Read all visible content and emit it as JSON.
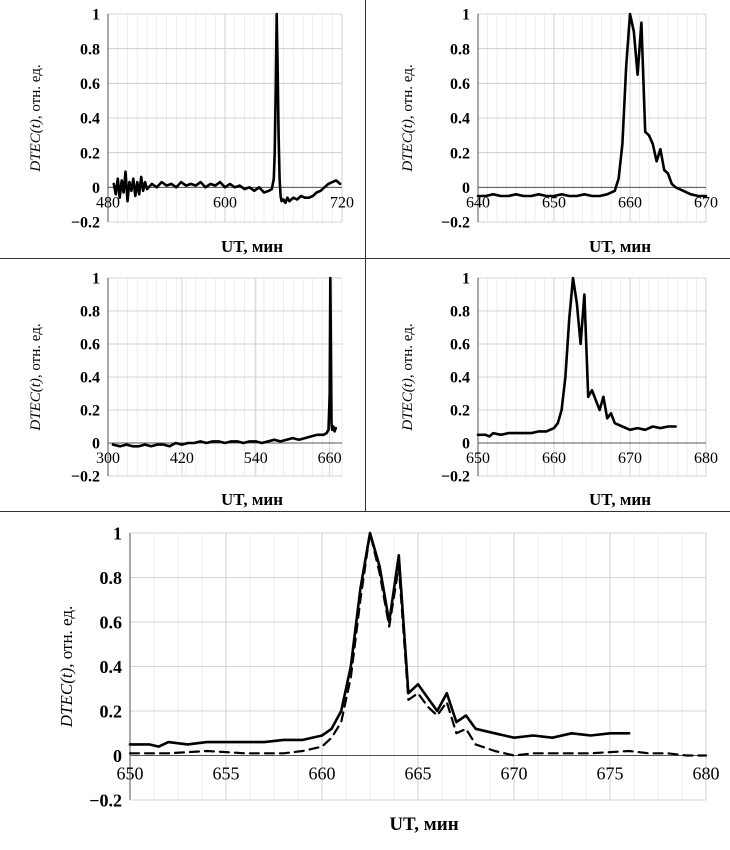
{
  "chart_data": [
    {
      "type": "line",
      "panel": "top-left",
      "xlabel": "UT, мин",
      "ylabel_italic": "DTEC(t)",
      "ylabel_rest": ", отн. ед.",
      "xlim": [
        480,
        720
      ],
      "ylim": [
        -0.2,
        1
      ],
      "xticks": [
        480,
        600,
        720
      ],
      "xtick_labels": [
        "480",
        "600",
        "720"
      ],
      "yticks": [
        -0.2,
        0,
        0.2,
        0.4,
        0.6,
        0.8,
        1
      ],
      "ytick_labels": [
        "−0.2",
        "0",
        "0.2",
        "0.4",
        "0.6",
        "0.8",
        "1"
      ],
      "series": [
        {
          "name": "DTEC",
          "style": "solid",
          "x": [
            486,
            488,
            490,
            492,
            494,
            496,
            498,
            500,
            502,
            504,
            506,
            508,
            510,
            512,
            514,
            516,
            518,
            520,
            525,
            530,
            535,
            540,
            545,
            550,
            555,
            560,
            565,
            570,
            575,
            580,
            585,
            590,
            595,
            600,
            605,
            610,
            615,
            620,
            625,
            630,
            635,
            640,
            645,
            648,
            650,
            651,
            652,
            653,
            654,
            655,
            656,
            657,
            658,
            660,
            662,
            664,
            666,
            668,
            670,
            674,
            678,
            682,
            686,
            690,
            694,
            698,
            702,
            706,
            710,
            714,
            718
          ],
          "y": [
            0.02,
            -0.04,
            0.05,
            -0.06,
            0.04,
            -0.03,
            0.09,
            -0.08,
            0.03,
            -0.02,
            0.05,
            -0.05,
            0.03,
            -0.04,
            0.06,
            -0.02,
            0.03,
            -0.01,
            0.02,
            0.0,
            0.03,
            0.01,
            0.02,
            0.0,
            0.03,
            0.01,
            0.02,
            0.01,
            0.03,
            0.0,
            0.02,
            0.01,
            0.03,
            0.0,
            0.02,
            0.0,
            0.01,
            -0.01,
            0.0,
            -0.02,
            0.0,
            -0.03,
            -0.02,
            -0.01,
            0.05,
            0.2,
            0.55,
            1.0,
            0.7,
            0.3,
            0.05,
            -0.05,
            -0.08,
            -0.07,
            -0.09,
            -0.06,
            -0.08,
            -0.07,
            -0.06,
            -0.07,
            -0.05,
            -0.06,
            -0.06,
            -0.05,
            -0.03,
            -0.02,
            0.0,
            0.02,
            0.03,
            0.04,
            0.02
          ]
        }
      ]
    },
    {
      "type": "line",
      "panel": "top-right",
      "xlabel": "UT, мин",
      "ylabel_italic": "DTEC(t)",
      "ylabel_rest": ", отн. ед.",
      "xlim": [
        640,
        670
      ],
      "ylim": [
        -0.2,
        1
      ],
      "xticks": [
        640,
        650,
        660,
        670
      ],
      "xtick_labels": [
        "640",
        "650",
        "660",
        "670"
      ],
      "yticks": [
        -0.2,
        0,
        0.2,
        0.4,
        0.6,
        0.8,
        1
      ],
      "ytick_labels": [
        "−0.2",
        "0",
        "0.2",
        "0.4",
        "0.6",
        "0.8",
        "1"
      ],
      "series": [
        {
          "name": "DTEC",
          "style": "solid",
          "x": [
            640,
            641,
            642,
            643,
            644,
            645,
            646,
            647,
            648,
            649,
            650,
            651,
            652,
            653,
            654,
            655,
            656,
            657,
            658,
            658.5,
            659,
            659.5,
            660,
            660.5,
            661,
            661.5,
            662,
            662.5,
            663,
            663.5,
            664,
            664.5,
            665,
            665.5,
            666,
            667,
            668,
            669,
            670
          ],
          "y": [
            -0.05,
            -0.05,
            -0.04,
            -0.05,
            -0.05,
            -0.04,
            -0.05,
            -0.05,
            -0.04,
            -0.05,
            -0.05,
            -0.04,
            -0.05,
            -0.05,
            -0.04,
            -0.05,
            -0.05,
            -0.04,
            -0.02,
            0.05,
            0.25,
            0.7,
            1.0,
            0.9,
            0.65,
            0.95,
            0.32,
            0.3,
            0.25,
            0.15,
            0.22,
            0.1,
            0.08,
            0.02,
            0.0,
            -0.02,
            -0.04,
            -0.05,
            -0.05
          ]
        }
      ]
    },
    {
      "type": "line",
      "panel": "middle-left",
      "xlabel": "UT, мин",
      "ylabel_italic": "DTEC(t)",
      "ylabel_rest": ", отн. ед.",
      "xlim": [
        300,
        680
      ],
      "ylim": [
        -0.2,
        1
      ],
      "xticks": [
        300,
        420,
        540,
        660
      ],
      "xtick_labels": [
        "300",
        "420",
        "540",
        "660"
      ],
      "yticks": [
        -0.2,
        0,
        0.2,
        0.4,
        0.6,
        0.8,
        1
      ],
      "ytick_labels": [
        "−0.2",
        "0",
        "0.2",
        "0.4",
        "0.6",
        "0.8",
        "1"
      ],
      "series": [
        {
          "name": "DTEC",
          "style": "solid",
          "x": [
            308,
            320,
            330,
            340,
            350,
            360,
            370,
            380,
            390,
            400,
            410,
            420,
            430,
            440,
            450,
            460,
            470,
            480,
            490,
            500,
            510,
            520,
            530,
            540,
            550,
            560,
            570,
            580,
            590,
            600,
            610,
            620,
            630,
            640,
            650,
            655,
            658,
            660,
            661,
            662,
            663,
            664,
            666,
            668,
            670
          ],
          "y": [
            -0.01,
            -0.02,
            -0.01,
            -0.02,
            -0.02,
            -0.01,
            -0.02,
            -0.01,
            -0.01,
            -0.02,
            0.0,
            -0.01,
            0.0,
            0.0,
            0.01,
            0.0,
            0.01,
            0.01,
            0.0,
            0.01,
            0.01,
            0.0,
            0.01,
            0.01,
            0.0,
            0.01,
            0.02,
            0.01,
            0.02,
            0.03,
            0.02,
            0.03,
            0.04,
            0.05,
            0.05,
            0.06,
            0.08,
            0.3,
            1.0,
            0.6,
            0.12,
            0.08,
            0.1,
            0.07,
            0.09
          ]
        }
      ]
    },
    {
      "type": "line",
      "panel": "middle-right",
      "xlabel": "UT, мин",
      "ylabel_italic": "DTEC(t)",
      "ylabel_rest": ", отн. ед.",
      "xlim": [
        650,
        680
      ],
      "ylim": [
        -0.2,
        1
      ],
      "xticks": [
        650,
        660,
        670,
        680
      ],
      "xtick_labels": [
        "650",
        "660",
        "670",
        "680"
      ],
      "yticks": [
        -0.2,
        0,
        0.2,
        0.4,
        0.6,
        0.8,
        1
      ],
      "ytick_labels": [
        "−0.2",
        "0",
        "0.2",
        "0.4",
        "0.6",
        "0.8",
        "1"
      ],
      "series": [
        {
          "name": "DTEC",
          "style": "solid",
          "x": [
            650,
            651,
            651.5,
            652,
            653,
            654,
            655,
            656,
            657,
            658,
            659,
            660,
            660.5,
            661,
            661.5,
            662,
            662.5,
            663,
            663.5,
            664,
            664.5,
            665,
            665.5,
            666,
            666.5,
            667,
            667.5,
            668,
            669,
            670,
            671,
            672,
            673,
            674,
            675,
            676
          ],
          "y": [
            0.05,
            0.05,
            0.04,
            0.06,
            0.05,
            0.06,
            0.06,
            0.06,
            0.06,
            0.07,
            0.07,
            0.09,
            0.12,
            0.2,
            0.4,
            0.75,
            1.0,
            0.85,
            0.6,
            0.9,
            0.28,
            0.32,
            0.26,
            0.2,
            0.28,
            0.15,
            0.18,
            0.12,
            0.1,
            0.08,
            0.09,
            0.08,
            0.1,
            0.09,
            0.1,
            0.1
          ]
        }
      ]
    },
    {
      "type": "line",
      "panel": "bottom",
      "xlabel": "UT, мин",
      "ylabel_italic": "DTEC(t)",
      "ylabel_rest": ", отн. ед.",
      "xlim": [
        650,
        680
      ],
      "ylim": [
        -0.2,
        1
      ],
      "xticks": [
        650,
        655,
        660,
        665,
        670,
        675,
        680
      ],
      "xtick_labels": [
        "650",
        "655",
        "660",
        "665",
        "670",
        "675",
        "680"
      ],
      "yticks": [
        -0.2,
        0,
        0.2,
        0.4,
        0.6,
        0.8,
        1
      ],
      "ytick_labels": [
        "−0.2",
        "0",
        "0.2",
        "0.4",
        "0.6",
        "0.8",
        "1"
      ],
      "series": [
        {
          "name": "DTEC (solid)",
          "style": "solid",
          "x": [
            650,
            651,
            651.5,
            652,
            653,
            654,
            655,
            656,
            657,
            658,
            659,
            660,
            660.5,
            661,
            661.5,
            662,
            662.5,
            663,
            663.5,
            664,
            664.5,
            665,
            665.5,
            666,
            666.5,
            667,
            667.5,
            668,
            669,
            670,
            671,
            672,
            673,
            674,
            675,
            676
          ],
          "y": [
            0.05,
            0.05,
            0.04,
            0.06,
            0.05,
            0.06,
            0.06,
            0.06,
            0.06,
            0.07,
            0.07,
            0.09,
            0.12,
            0.2,
            0.4,
            0.75,
            1.0,
            0.85,
            0.6,
            0.9,
            0.28,
            0.32,
            0.26,
            0.2,
            0.28,
            0.15,
            0.18,
            0.12,
            0.1,
            0.08,
            0.09,
            0.08,
            0.1,
            0.09,
            0.1,
            0.1
          ]
        },
        {
          "name": "DTEC (dashed)",
          "style": "dashed",
          "x": [
            650,
            652,
            654,
            656,
            658,
            659,
            660,
            660.5,
            661,
            661.5,
            662,
            662.5,
            663,
            663.5,
            664,
            664.5,
            665,
            665.5,
            666,
            666.5,
            667,
            667.5,
            668,
            669,
            670,
            671,
            672,
            674,
            676,
            677,
            678,
            679,
            680
          ],
          "y": [
            0.01,
            0.01,
            0.02,
            0.01,
            0.01,
            0.02,
            0.04,
            0.08,
            0.15,
            0.35,
            0.7,
            1.0,
            0.82,
            0.58,
            0.85,
            0.25,
            0.28,
            0.22,
            0.18,
            0.24,
            0.1,
            0.12,
            0.05,
            0.02,
            0.0,
            0.01,
            0.01,
            0.01,
            0.02,
            0.01,
            0.01,
            0.0,
            0.0
          ]
        }
      ]
    }
  ]
}
